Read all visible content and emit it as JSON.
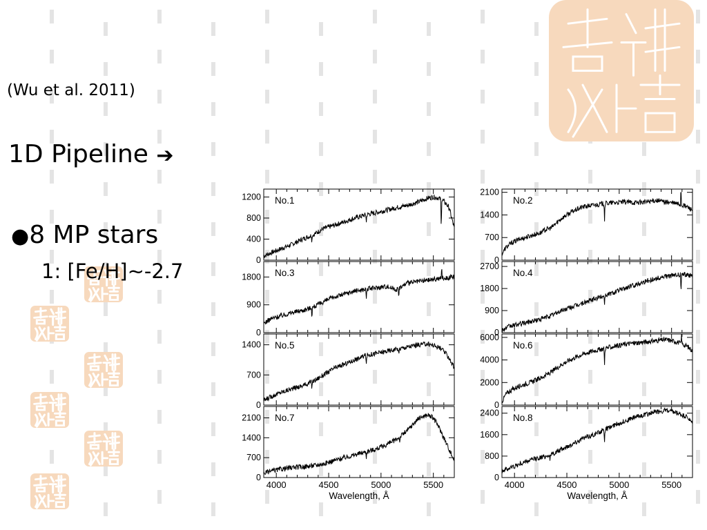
{
  "slide": {
    "citation": "(Wu et al. 2011)",
    "pipeline_label": "1D Pipeline",
    "pipeline_arrow": "➔",
    "bullet": "●",
    "stars_label": "8 MP stars",
    "feh_label": "1: [Fe/H]~-2.7"
  },
  "colors": {
    "seal": "#f7d9bd",
    "seal_stroke": "#ffffff",
    "dash": "#e4e4e4",
    "ink": "#000000"
  },
  "icons": [
    "seal-stamp-icon",
    "right-arrow-icon",
    "bullet-icon"
  ],
  "chart_data": {
    "type": "line",
    "xlabel": "Wavelength, Å",
    "xlim": [
      3880,
      5700
    ],
    "x_ticks": [
      4000,
      4500,
      5000,
      5500
    ],
    "panels": [
      {
        "label": "No.1",
        "ylim": [
          0,
          1350
        ],
        "y_ticks": [
          0,
          400,
          800,
          1200
        ],
        "x": [
          3880,
          3950,
          4050,
          4150,
          4250,
          4350,
          4450,
          4550,
          4650,
          4750,
          4850,
          4950,
          5050,
          5150,
          5250,
          5350,
          5450,
          5500,
          5550,
          5600,
          5650,
          5700
        ],
        "y": [
          80,
          140,
          220,
          300,
          400,
          480,
          600,
          660,
          730,
          800,
          860,
          900,
          950,
          1000,
          1040,
          1100,
          1180,
          1200,
          1180,
          1120,
          1000,
          600
        ],
        "lines": [
          {
            "x": 4340,
            "d": -120
          },
          {
            "x": 4860,
            "d": -150
          },
          {
            "x": 5575,
            "d": -600
          }
        ]
      },
      {
        "label": "No.2",
        "ylim": [
          0,
          2200
        ],
        "y_ticks": [
          0,
          700,
          1400,
          2100
        ],
        "x": [
          3880,
          3920,
          3980,
          4050,
          4150,
          4250,
          4300,
          4350,
          4450,
          4550,
          4650,
          4750,
          4850,
          4950,
          5050,
          5150,
          5250,
          5350,
          5450,
          5550,
          5650,
          5700
        ],
        "y": [
          200,
          400,
          550,
          650,
          750,
          850,
          950,
          1000,
          1300,
          1500,
          1650,
          1700,
          1750,
          1780,
          1800,
          1780,
          1800,
          1850,
          1800,
          1750,
          1650,
          1550
        ],
        "lines": [
          {
            "x": 4860,
            "d": -500
          },
          {
            "x": 5590,
            "d": 600
          }
        ]
      },
      {
        "label": "No.3",
        "ylim": [
          0,
          2300
        ],
        "y_ticks": [
          0,
          900,
          1800
        ],
        "x": [
          3880,
          3950,
          4050,
          4150,
          4250,
          4350,
          4450,
          4550,
          4650,
          4750,
          4850,
          4950,
          5050,
          5150,
          5250,
          5350,
          5450,
          5550,
          5650,
          5700
        ],
        "y": [
          300,
          450,
          550,
          650,
          720,
          820,
          1000,
          1150,
          1250,
          1350,
          1400,
          1450,
          1500,
          1400,
          1600,
          1650,
          1700,
          1750,
          1780,
          1800
        ],
        "lines": [
          {
            "x": 4340,
            "d": -300
          },
          {
            "x": 4860,
            "d": -350
          },
          {
            "x": 5170,
            "d": -400
          },
          {
            "x": 5580,
            "d": 400
          }
        ]
      },
      {
        "label": "No.4",
        "ylim": [
          0,
          2900
        ],
        "y_ticks": [
          0,
          900,
          1800,
          2700
        ],
        "x": [
          3880,
          3950,
          4050,
          4150,
          4250,
          4350,
          4450,
          4550,
          4650,
          4750,
          4850,
          4950,
          5050,
          5150,
          5250,
          5350,
          5450,
          5550,
          5650,
          5700
        ],
        "y": [
          100,
          250,
          350,
          450,
          550,
          700,
          900,
          1050,
          1200,
          1350,
          1500,
          1650,
          1800,
          1950,
          2100,
          2200,
          2300,
          2350,
          2380,
          2300
        ],
        "lines": [
          {
            "x": 4860,
            "d": -350
          },
          {
            "x": 5590,
            "d": -800
          }
        ]
      },
      {
        "label": "No.5",
        "ylim": [
          0,
          1650
        ],
        "y_ticks": [
          0,
          700,
          1400
        ],
        "x": [
          3880,
          3950,
          4050,
          4150,
          4250,
          4350,
          4450,
          4550,
          4650,
          4750,
          4850,
          4950,
          5050,
          5150,
          5250,
          5350,
          5450,
          5550,
          5600,
          5650,
          5700
        ],
        "y": [
          100,
          200,
          300,
          380,
          450,
          550,
          700,
          850,
          950,
          1050,
          1150,
          1200,
          1250,
          1300,
          1350,
          1400,
          1420,
          1350,
          1250,
          1100,
          850
        ],
        "lines": [
          {
            "x": 4340,
            "d": -150
          },
          {
            "x": 4860,
            "d": -250
          },
          {
            "x": 5170,
            "d": -200
          }
        ]
      },
      {
        "label": "No.6",
        "ylim": [
          0,
          6300
        ],
        "y_ticks": [
          0,
          2000,
          4000,
          6000
        ],
        "x": [
          3880,
          3920,
          3980,
          4050,
          4150,
          4250,
          4350,
          4450,
          4550,
          4650,
          4750,
          4850,
          4950,
          5050,
          5150,
          5250,
          5350,
          5450,
          5550,
          5650,
          5700
        ],
        "y": [
          300,
          1000,
          1400,
          1700,
          2000,
          2400,
          2900,
          3600,
          4100,
          4500,
          4800,
          5000,
          5200,
          5400,
          5500,
          5600,
          5700,
          5800,
          5600,
          5200,
          4800
        ],
        "lines": [
          {
            "x": 4860,
            "d": -1500
          },
          {
            "x": 5595,
            "d": 800
          }
        ]
      },
      {
        "label": "No.7",
        "ylim": [
          0,
          2500
        ],
        "y_ticks": [
          0,
          700,
          1400,
          2100
        ],
        "x": [
          3880,
          3950,
          4050,
          4150,
          4250,
          4350,
          4450,
          4550,
          4650,
          4750,
          4850,
          4950,
          5050,
          5150,
          5250,
          5300,
          5350,
          5400,
          5450,
          5500,
          5550,
          5600,
          5650,
          5700
        ],
        "y": [
          150,
          230,
          300,
          350,
          380,
          420,
          480,
          600,
          700,
          800,
          900,
          1000,
          1150,
          1350,
          1650,
          1850,
          2050,
          2150,
          2200,
          2100,
          1800,
          1400,
          1000,
          600
        ],
        "lines": [
          {
            "x": 4860,
            "d": -200
          },
          {
            "x": 5180,
            "d": -250
          }
        ]
      },
      {
        "label": "No.8",
        "ylim": [
          0,
          2650
        ],
        "y_ticks": [
          0,
          800,
          1600,
          2400
        ],
        "x": [
          3880,
          3950,
          4050,
          4150,
          4250,
          4350,
          4450,
          4550,
          4650,
          4750,
          4850,
          4950,
          5050,
          5150,
          5250,
          5350,
          5450,
          5550,
          5650,
          5700
        ],
        "y": [
          250,
          350,
          500,
          650,
          750,
          850,
          1050,
          1250,
          1450,
          1600,
          1750,
          1950,
          2100,
          2250,
          2350,
          2450,
          2500,
          2400,
          2250,
          2000
        ],
        "lines": [
          {
            "x": 4340,
            "d": -200
          },
          {
            "x": 4860,
            "d": -500
          }
        ]
      }
    ]
  }
}
